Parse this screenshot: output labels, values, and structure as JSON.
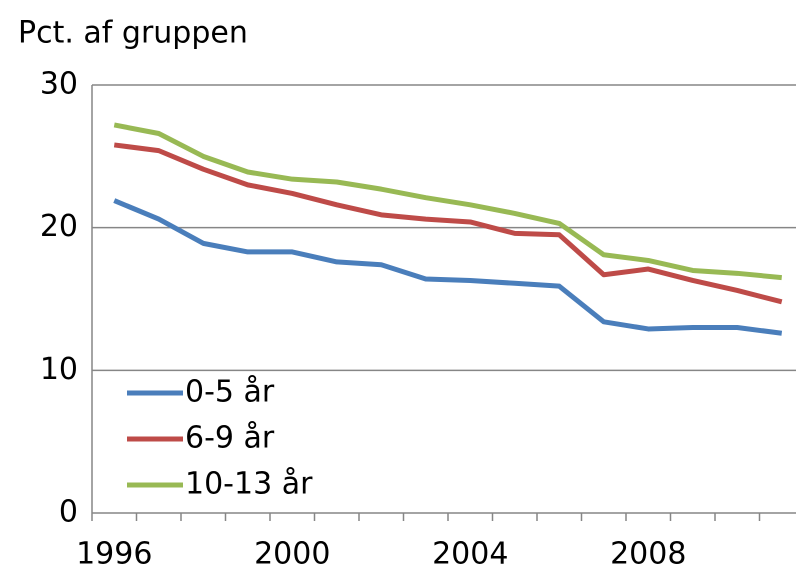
{
  "chart_data": {
    "type": "line",
    "title": "Pct. af gruppen",
    "categories": [
      "1996",
      null,
      null,
      null,
      "2000",
      null,
      null,
      null,
      "2004",
      null,
      null,
      null,
      "2008",
      null,
      null,
      null
    ],
    "series": [
      {
        "name": "0-5 år",
        "color": "#4a7ebb",
        "values": [
          21.9,
          20.6,
          18.9,
          18.3,
          18.3,
          17.6,
          17.4,
          16.4,
          16.3,
          16.1,
          15.9,
          13.4,
          12.9,
          13.0,
          13.0,
          12.6
        ]
      },
      {
        "name": "6-9 år",
        "color": "#be4b48",
        "values": [
          25.8,
          25.4,
          24.1,
          23.0,
          22.4,
          21.6,
          20.9,
          20.6,
          20.4,
          19.6,
          19.5,
          16.7,
          17.1,
          16.3,
          15.6,
          14.8
        ]
      },
      {
        "name": "10-13 år",
        "color": "#98b954",
        "values": [
          27.2,
          26.6,
          25.0,
          23.9,
          23.4,
          23.2,
          22.7,
          22.1,
          21.6,
          21.0,
          20.3,
          18.1,
          17.7,
          17.0,
          16.8,
          16.5
        ]
      }
    ],
    "ylim": [
      0,
      30
    ],
    "yticks": [
      0,
      10,
      20,
      30
    ],
    "grid": true
  }
}
